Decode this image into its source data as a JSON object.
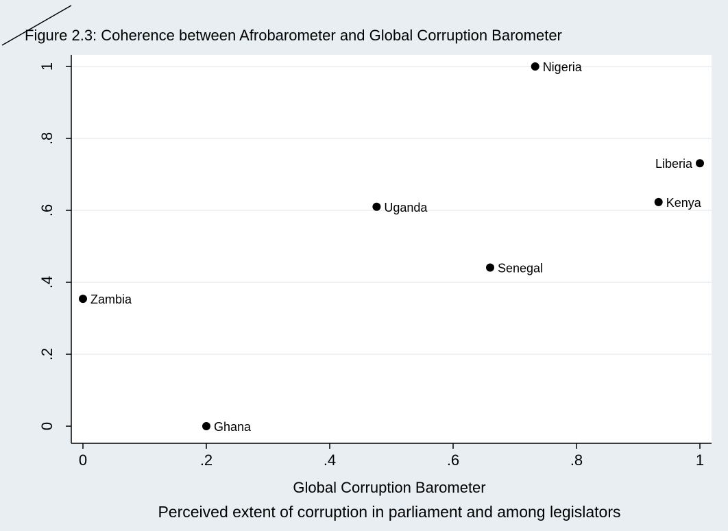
{
  "chart_data": {
    "type": "scatter",
    "title": "Figure 2.3: Coherence between Afrobarometer and Global Corruption Barometer",
    "xlabel": "Global Corruption Barometer",
    "caption": "Perceived extent of corruption in parliament and among legislators",
    "ylabel": "",
    "xlim": [
      0,
      1
    ],
    "ylim": [
      0,
      1
    ],
    "x_ticks": [
      0,
      0.2,
      0.4,
      0.6,
      0.8,
      1
    ],
    "x_tick_labels": [
      "0",
      ".2",
      ".4",
      ".6",
      ".8",
      "1"
    ],
    "y_ticks": [
      0,
      0.2,
      0.4,
      0.6,
      0.8,
      1
    ],
    "y_tick_labels": [
      "0",
      ".2",
      ".4",
      ".6",
      ".8",
      "1"
    ],
    "grid": "horizontal",
    "colors": {
      "background": "#e8eef1",
      "plot": "#ffffff",
      "grid": "#e8eef1",
      "marker": "#000000"
    },
    "points": [
      {
        "label": "Nigeria",
        "x": 0.733,
        "y": 1.0,
        "label_side": "right"
      },
      {
        "label": "Liberia",
        "x": 1.0,
        "y": 0.731,
        "label_side": "left"
      },
      {
        "label": "Kenya",
        "x": 0.933,
        "y": 0.623,
        "label_side": "right"
      },
      {
        "label": "Uganda",
        "x": 0.476,
        "y": 0.61,
        "label_side": "right"
      },
      {
        "label": "Senegal",
        "x": 0.66,
        "y": 0.441,
        "label_side": "right"
      },
      {
        "label": "Zambia",
        "x": 0.0,
        "y": 0.354,
        "label_side": "right"
      },
      {
        "label": "Ghana",
        "x": 0.2,
        "y": 0.0,
        "label_side": "right"
      }
    ]
  }
}
